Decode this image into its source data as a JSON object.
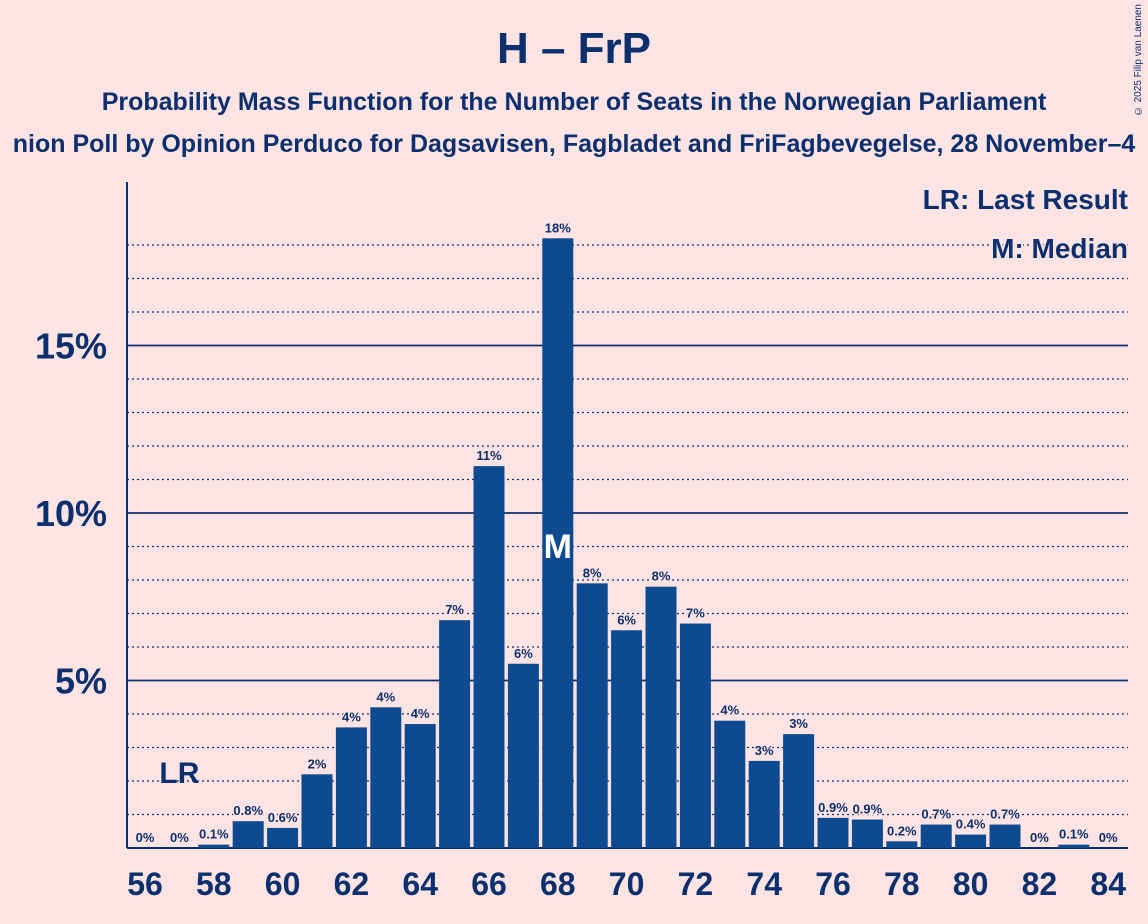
{
  "header": {
    "title": "H – FrP",
    "subtitle": "Probability Mass Function for the Number of Seats in the Norwegian Parliament",
    "subtitle2": "nion Poll by Opinion Perduco for Dagsavisen, Fagbladet and FriFagbevegelse, 28 November–4",
    "copyright": "© 2025 Filip van Laenen"
  },
  "legend": {
    "last_result": "LR: Last Result",
    "median": "M: Median"
  },
  "markers": {
    "lr_label": "LR",
    "lr_seat": 57,
    "median_label": "M",
    "median_seat": 68
  },
  "colors": {
    "background": "#fde4e4",
    "bar": "#0d4a8f",
    "text": "#0c2f6e"
  },
  "chart_data": {
    "type": "bar",
    "title": "H – FrP",
    "xlabel": "",
    "ylabel": "",
    "ylim": [
      0,
      19
    ],
    "grid": true,
    "legend_placement": "top-right",
    "y_ticks": [
      5,
      10,
      15
    ],
    "y_tick_labels": [
      "5%",
      "10%",
      "15%"
    ],
    "x_tick_labels": [
      "56",
      "58",
      "60",
      "62",
      "64",
      "66",
      "68",
      "70",
      "72",
      "74",
      "76",
      "78",
      "80",
      "82",
      "84"
    ],
    "x": [
      56,
      57,
      58,
      59,
      60,
      61,
      62,
      63,
      64,
      65,
      66,
      67,
      68,
      69,
      70,
      71,
      72,
      73,
      74,
      75,
      76,
      77,
      78,
      79,
      80,
      81,
      82,
      83,
      84
    ],
    "values": [
      0,
      0,
      0.1,
      0.8,
      0.6,
      2.2,
      3.6,
      4.2,
      3.7,
      6.8,
      11.4,
      5.5,
      18.2,
      7.9,
      6.5,
      7.8,
      6.7,
      3.8,
      2.6,
      3.4,
      0.9,
      0.85,
      0.2,
      0.7,
      0.4,
      0.7,
      0,
      0.1,
      0
    ],
    "labels": [
      "0%",
      "0%",
      "0.1%",
      "0.8%",
      "0.6%",
      "2%",
      "4%",
      "4%",
      "4%",
      "7%",
      "11%",
      "6%",
      "18%",
      "8%",
      "6%",
      "8%",
      "7%",
      "4%",
      "3%",
      "3%",
      "0.9%",
      "0.9%",
      "0.2%",
      "0.7%",
      "0.4%",
      "0.7%",
      "0%",
      "0.1%",
      "0%"
    ]
  }
}
